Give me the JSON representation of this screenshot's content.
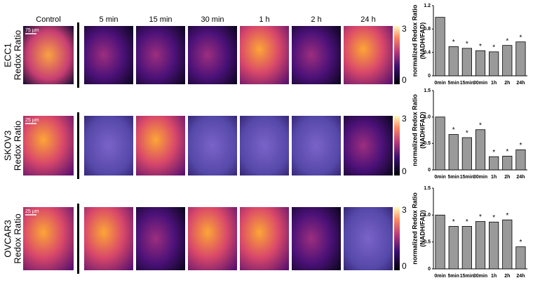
{
  "column_labels": [
    "Control",
    "5 min",
    "15 min",
    "30 min",
    "1 h",
    "2 h",
    "24 h"
  ],
  "rows": [
    {
      "label": [
        "ECC1",
        "Redox Ratio"
      ],
      "scale_bar": "75 µm",
      "colorbar_max": "3",
      "colorbar_min": "0"
    },
    {
      "label": [
        "SKOV3",
        "Redox Ratio"
      ],
      "scale_bar": "25 µm",
      "colorbar_max": "3",
      "colorbar_min": "0"
    },
    {
      "label": [
        "OVCAR3",
        "Redox Ratio"
      ],
      "scale_bar": "25 µm",
      "colorbar_max": "3",
      "colorbar_min": "0"
    }
  ],
  "chart_data": [
    {
      "type": "bar",
      "ylabel": [
        "normalized Redox Ratio",
        "(NADH/FAD)"
      ],
      "categories": [
        "0min",
        "5min",
        "15min",
        "30min",
        "1h",
        "2h",
        "24h"
      ],
      "values": [
        1.0,
        0.5,
        0.47,
        0.43,
        0.41,
        0.52,
        0.58
      ],
      "stars": [
        null,
        "*",
        "*",
        "*",
        "*",
        "*",
        "*"
      ],
      "color": "#9a9a9a",
      "ylim": [
        0,
        1.2
      ],
      "yticks": [
        0,
        0.4,
        0.8,
        1.2
      ]
    },
    {
      "type": "bar",
      "ylabel": [
        "normalized Redox Ratio",
        "(NADH/FAD)"
      ],
      "categories": [
        "0min",
        "5min",
        "15min",
        "30min",
        "1h",
        "2h",
        "24h"
      ],
      "values": [
        1.0,
        0.67,
        0.61,
        0.76,
        0.25,
        0.26,
        0.38
      ],
      "stars": [
        null,
        "*",
        "*",
        "*",
        "*",
        "*",
        "*"
      ],
      "color": "#9a9a9a",
      "ylim": [
        0,
        1.5
      ],
      "yticks": [
        0,
        0.5,
        {
          "value": 1,
          "label": "1.0"
        },
        1.5
      ]
    },
    {
      "type": "bar",
      "ylabel": [
        "normalized Redox Ratio",
        "(NADH/FAD)"
      ],
      "categories": [
        "0min",
        "5min",
        "15min",
        "30min",
        "1h",
        "2h",
        "24h"
      ],
      "values": [
        1.0,
        0.79,
        0.79,
        0.88,
        0.87,
        0.91,
        0.41
      ],
      "stars": [
        null,
        "*",
        "*",
        "*",
        "*",
        "*",
        "*"
      ],
      "color": "#9a9a9a",
      "ylim": [
        0,
        1.5
      ],
      "yticks": [
        0,
        0.5,
        {
          "value": 1,
          "label": "1.0"
        },
        1.5
      ]
    }
  ]
}
